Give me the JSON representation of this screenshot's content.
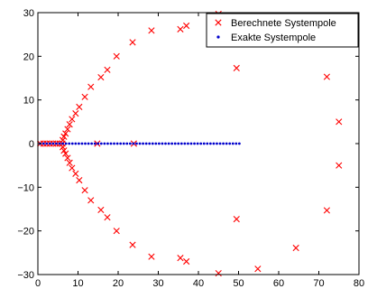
{
  "chart_data": {
    "type": "scatter",
    "xlim": [
      0,
      80
    ],
    "ylim": [
      -30,
      30
    ],
    "xticks": [
      "0",
      "10",
      "20",
      "30",
      "40",
      "50",
      "60",
      "70",
      "80"
    ],
    "yticks": [
      "30",
      "20",
      "10",
      "0",
      "−10",
      "−20",
      "−30"
    ],
    "xtick_values": [
      0,
      10,
      20,
      30,
      40,
      50,
      60,
      70,
      80
    ],
    "ytick_values": [
      30,
      20,
      10,
      0,
      -10,
      -20,
      -30
    ],
    "grid": false,
    "legend_position": "top-right",
    "series": [
      {
        "name": "Berechnete Systempole",
        "marker": "x",
        "color": "#ff0000",
        "points": [
          [
            45,
            29.7
          ],
          [
            37,
            27
          ],
          [
            35.5,
            26.2
          ],
          [
            28.3,
            25.9
          ],
          [
            23.6,
            23.2
          ],
          [
            19.6,
            20
          ],
          [
            17.3,
            16.9
          ],
          [
            15.7,
            15.2
          ],
          [
            13.2,
            13
          ],
          [
            11.7,
            10.7
          ],
          [
            10.3,
            8.4
          ],
          [
            9.4,
            6.9
          ],
          [
            8.5,
            5.6
          ],
          [
            7.9,
            4.4
          ],
          [
            7.4,
            3.3
          ],
          [
            6.9,
            2.3
          ],
          [
            6.5,
            1.6
          ],
          [
            6.2,
            0.8
          ],
          [
            49.5,
            17.3
          ],
          [
            72,
            15.3
          ],
          [
            75,
            5
          ],
          [
            75,
            -5
          ],
          [
            72,
            -15.3
          ],
          [
            64.3,
            -23.9
          ],
          [
            54.8,
            -28.7
          ],
          [
            49.5,
            -17.3
          ],
          [
            45,
            -29.7
          ],
          [
            37,
            -27
          ],
          [
            35.5,
            -26.2
          ],
          [
            28.3,
            -25.9
          ],
          [
            23.6,
            -23.2
          ],
          [
            19.6,
            -20
          ],
          [
            17.3,
            -16.9
          ],
          [
            15.7,
            -15.2
          ],
          [
            13.2,
            -13
          ],
          [
            11.7,
            -10.7
          ],
          [
            10.3,
            -8.4
          ],
          [
            9.4,
            -6.9
          ],
          [
            8.5,
            -5.6
          ],
          [
            7.9,
            -4.4
          ],
          [
            7.4,
            -3.3
          ],
          [
            6.9,
            -2.3
          ],
          [
            6.5,
            -1.6
          ],
          [
            6.2,
            -0.8
          ],
          [
            0.6,
            0
          ],
          [
            1.4,
            0
          ],
          [
            2.2,
            0
          ],
          [
            3,
            0
          ],
          [
            3.8,
            0
          ],
          [
            4.6,
            0
          ],
          [
            5.4,
            0
          ],
          [
            6.1,
            0
          ],
          [
            14.8,
            0
          ],
          [
            23.9,
            0
          ]
        ]
      },
      {
        "name": "Exakte Systempole",
        "marker": "dot",
        "color": "#0000cc",
        "points": [
          [
            0.6,
            0
          ],
          [
            1.4,
            0
          ],
          [
            2.2,
            0
          ],
          [
            3,
            0
          ],
          [
            3.8,
            0
          ],
          [
            4.6,
            0
          ],
          [
            5.4,
            0
          ],
          [
            6.2,
            0
          ],
          [
            7,
            0
          ],
          [
            7.8,
            0
          ],
          [
            8.6,
            0
          ],
          [
            9.4,
            0
          ],
          [
            10.2,
            0
          ],
          [
            11,
            0
          ],
          [
            11.8,
            0
          ],
          [
            12.6,
            0
          ],
          [
            13.4,
            0
          ],
          [
            14.2,
            0
          ],
          [
            15,
            0
          ],
          [
            15.8,
            0
          ],
          [
            16.6,
            0
          ],
          [
            17.4,
            0
          ],
          [
            18.2,
            0
          ],
          [
            19,
            0
          ],
          [
            19.8,
            0
          ],
          [
            20.6,
            0
          ],
          [
            21.4,
            0
          ],
          [
            22.2,
            0
          ],
          [
            23,
            0
          ],
          [
            23.8,
            0
          ],
          [
            24.6,
            0
          ],
          [
            25.4,
            0
          ],
          [
            26.2,
            0
          ],
          [
            27,
            0
          ],
          [
            27.8,
            0
          ],
          [
            28.6,
            0
          ],
          [
            29.4,
            0
          ],
          [
            30.2,
            0
          ],
          [
            31,
            0
          ],
          [
            31.8,
            0
          ],
          [
            32.6,
            0
          ],
          [
            33.4,
            0
          ],
          [
            34.2,
            0
          ],
          [
            35,
            0
          ],
          [
            35.8,
            0
          ],
          [
            36.6,
            0
          ],
          [
            37.4,
            0
          ],
          [
            38.2,
            0
          ],
          [
            39,
            0
          ],
          [
            39.8,
            0
          ],
          [
            40.6,
            0
          ],
          [
            41.4,
            0
          ],
          [
            42.2,
            0
          ],
          [
            43,
            0
          ],
          [
            43.8,
            0
          ],
          [
            44.6,
            0
          ],
          [
            45.4,
            0
          ],
          [
            46.2,
            0
          ],
          [
            47,
            0
          ],
          [
            47.8,
            0
          ],
          [
            48.6,
            0
          ],
          [
            49.4,
            0
          ],
          [
            50.2,
            0
          ]
        ]
      }
    ]
  }
}
